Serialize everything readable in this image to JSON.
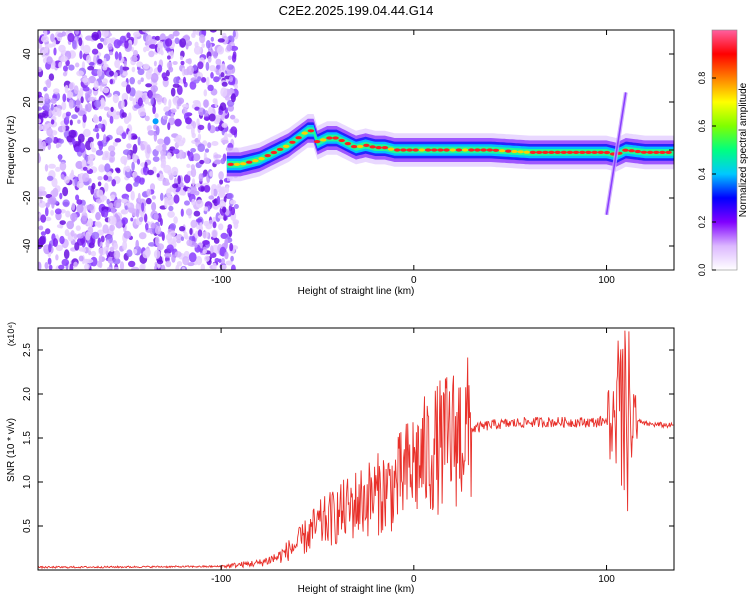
{
  "title": "C2E2.2025.199.04.44.G14",
  "chart_data": [
    {
      "type": "heatmap",
      "xlabel": "Height of straight line (km)",
      "ylabel": "Frequency (Hz)",
      "xlim": [
        -195,
        135
      ],
      "ylim": [
        -50,
        50
      ],
      "xticks": [
        -100,
        0,
        100
      ],
      "yticks": [
        -40,
        -20,
        0,
        20,
        40
      ],
      "colorbar": {
        "label": "Normalized spectral amplitude",
        "range": [
          0,
          1
        ],
        "ticks": [
          "0.0",
          "0.2",
          "0.4",
          "0.6",
          "0.8"
        ],
        "colors": [
          "#ffffff",
          "#dcb8ff",
          "#8000ff",
          "#0000ff",
          "#00c8ff",
          "#00ff80",
          "#80ff00",
          "#ffff00",
          "#ff8000",
          "#ff0000",
          "#ff60a0"
        ]
      },
      "ridge": {
        "x": [
          -95,
          -90,
          -85,
          -80,
          -75,
          -70,
          -65,
          -60,
          -55,
          -52,
          -50,
          -45,
          -40,
          -35,
          -30,
          -25,
          -20,
          -15,
          -10,
          -5,
          0,
          20,
          40,
          60,
          80,
          100,
          105,
          110,
          120,
          135
        ],
        "y": [
          -6,
          -6,
          -5,
          -4,
          -2,
          0,
          2,
          5,
          8,
          8,
          3,
          5,
          5,
          3,
          1,
          2,
          1,
          1,
          0,
          0,
          0,
          0,
          0,
          -1,
          -1,
          -1,
          -2,
          0,
          -1,
          -1
        ]
      },
      "chirp": {
        "x": [
          100,
          110
        ],
        "y": [
          -27,
          24
        ]
      }
    },
    {
      "type": "line",
      "xlabel": "Height of straight line (km)",
      "ylabel": "SNR (10 * v/v)",
      "y_multiplier": "(x10⁴)",
      "xlim": [
        -195,
        135
      ],
      "ylim": [
        0,
        2.75
      ],
      "xticks": [
        -100,
        0,
        100
      ],
      "yticks": [
        "0.5",
        "1.0",
        "1.5",
        "2.0",
        "2.5"
      ],
      "color": "#e8302a",
      "series_envelope": {
        "x": [
          -195,
          -100,
          -80,
          -70,
          -60,
          -50,
          -40,
          -30,
          -20,
          -10,
          0,
          10,
          20,
          30,
          40,
          60,
          80,
          95,
          100,
          105,
          108,
          110,
          112,
          115,
          120,
          135
        ],
        "y": [
          0.03,
          0.04,
          0.08,
          0.15,
          0.3,
          0.5,
          0.62,
          0.75,
          0.85,
          0.95,
          1.2,
          1.35,
          1.5,
          1.6,
          1.65,
          1.68,
          1.68,
          1.68,
          1.7,
          1.75,
          2.2,
          1.0,
          2.0,
          1.7,
          1.66,
          1.64
        ]
      }
    }
  ]
}
